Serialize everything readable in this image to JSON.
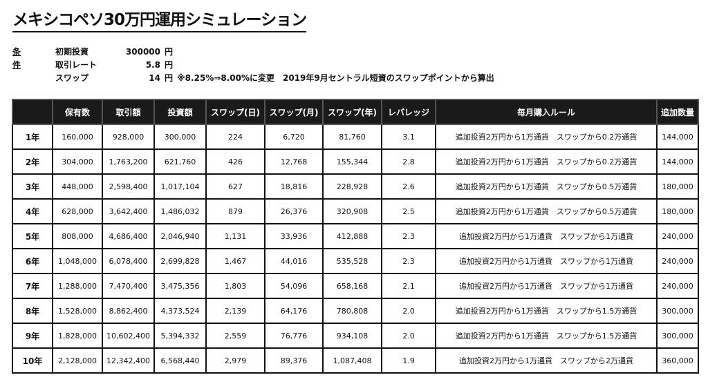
{
  "title": "メキシコペソ30万円運用シミュレーション",
  "conditions": {
    "label": "条件",
    "rows": [
      {
        "key": "初期投資",
        "value": "300000",
        "unit": "円",
        "note": ""
      },
      {
        "key": "取引レート",
        "value": "5.8",
        "unit": "円",
        "note": ""
      },
      {
        "key": "スワップ",
        "value": "14",
        "unit": "円",
        "note": "※8.25%⇒8.00%に変更　2019年9月セントラル短資のスワップポイントから算出"
      }
    ]
  },
  "table": {
    "headers": [
      "",
      "保有数",
      "取引額",
      "投資額",
      "スワップ(日)",
      "スワップ(月)",
      "スワップ(年)",
      "レバレッジ",
      "毎月購入ルール",
      "追加数量"
    ],
    "rows": [
      [
        "1年",
        "160,000",
        "928,000",
        "300,000",
        "224",
        "6,720",
        "81,760",
        "3.1",
        "追加投資2万円から1万通貨　スワップから0.2万通貨",
        "144,000"
      ],
      [
        "2年",
        "304,000",
        "1,763,200",
        "621,760",
        "426",
        "12,768",
        "155,344",
        "2.8",
        "追加投資2万円から1万通貨　スワップから0.2万通貨",
        "144,000"
      ],
      [
        "3年",
        "448,000",
        "2,598,400",
        "1,017,104",
        "627",
        "18,816",
        "228,928",
        "2.6",
        "追加投資2万円から1万通貨　スワップから0.5万通貨",
        "180,000"
      ],
      [
        "4年",
        "628,000",
        "3,642,400",
        "1,486,032",
        "879",
        "26,376",
        "320,908",
        "2.5",
        "追加投資2万円から1万通貨　スワップから0.5万通貨",
        "180,000"
      ],
      [
        "5年",
        "808,000",
        "4,686,400",
        "2,046,940",
        "1,131",
        "33,936",
        "412,888",
        "2.3",
        "追加投資2万円から1万通貨　スワップから1万通貨",
        "240,000"
      ],
      [
        "6年",
        "1,048,000",
        "6,078,400",
        "2,699,828",
        "1,467",
        "44,016",
        "535,528",
        "2.3",
        "追加投資2万円から1万通貨　スワップから1万通貨",
        "240,000"
      ],
      [
        "7年",
        "1,288,000",
        "7,470,400",
        "3,475,356",
        "1,803",
        "54,096",
        "658,168",
        "2.1",
        "追加投資2万円から1万通貨　スワップから1万通貨",
        "240,000"
      ],
      [
        "8年",
        "1,528,000",
        "8,862,400",
        "4,373,524",
        "2,139",
        "64,176",
        "780,808",
        "2.0",
        "追加投資2万円から1万通貨　スワップから1.5万通貨",
        "300,000"
      ],
      [
        "9年",
        "1,828,000",
        "10,602,400",
        "5,394,332",
        "2,559",
        "76,776",
        "934,108",
        "2.0",
        "追加投資2万円から1万通貨　スワップから1.5万通貨",
        "300,000"
      ],
      [
        "10年",
        "2,128,000",
        "12,342,400",
        "6,568,440",
        "2,979",
        "89,376",
        "1,087,408",
        "1.9",
        "追加投資2万円から1万通貨　スワップから2万通貨",
        "360,000"
      ]
    ]
  }
}
